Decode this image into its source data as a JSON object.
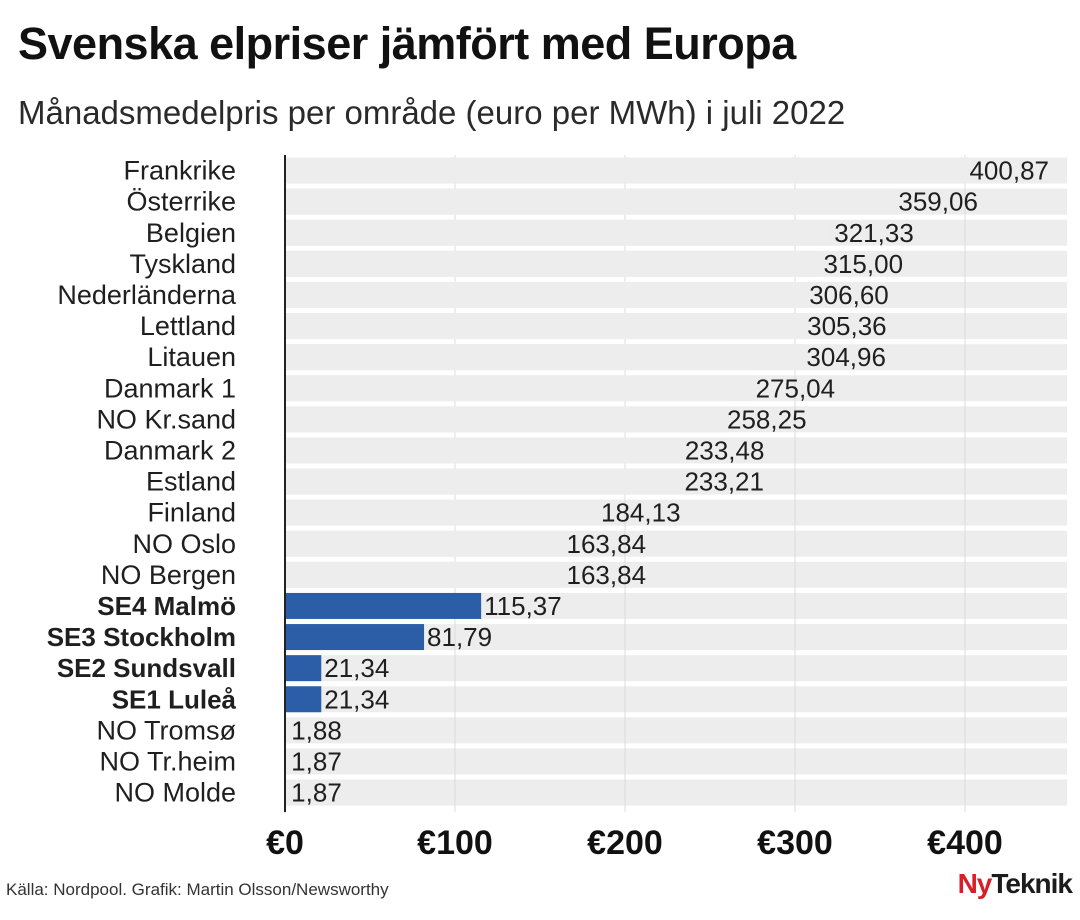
{
  "title": "Svenska elpriser jämfört med Europa",
  "subtitle": "Månadsmedelpris per område (euro per MWh) i juli 2022",
  "source": "Källa: Nordpool. Grafik: Martin Olsson/Newsworthy",
  "logo": {
    "part1": "Ny",
    "part2": "Teknik"
  },
  "colors": {
    "background_bar": "#ededed",
    "highlight_bar": "#2c5ea8",
    "grid": "#dcdcdc",
    "axis": "#222222",
    "logo_red": "#d81e27"
  },
  "chart_data": {
    "type": "bar",
    "orientation": "horizontal",
    "title": "Svenska elpriser jämfört med Europa",
    "subtitle": "Månadsmedelpris per område (euro per MWh) i juli 2022",
    "xlim": [
      0,
      460
    ],
    "grid": true,
    "x_ticks": [
      0,
      100,
      200,
      300,
      400
    ],
    "x_tick_labels": [
      "€0",
      "€100",
      "€200",
      "€300",
      "€400"
    ],
    "categories": [
      "Frankrike",
      "Österrike",
      "Belgien",
      "Tyskland",
      "Nederländerna",
      "Lettland",
      "Litauen",
      "Danmark 1",
      "NO Kr.sand",
      "Danmark 2",
      "Estland",
      "Finland",
      "NO Oslo",
      "NO Bergen",
      "SE4 Malmö",
      "SE3 Stockholm",
      "SE2 Sundsvall",
      "SE1 Luleå",
      "NO Tromsø",
      "NO Tr.heim",
      "NO Molde"
    ],
    "values": [
      400.87,
      359.06,
      321.33,
      315.0,
      306.6,
      305.36,
      304.96,
      275.04,
      258.25,
      233.48,
      233.21,
      184.13,
      163.84,
      163.84,
      115.37,
      81.79,
      21.34,
      21.34,
      1.88,
      1.87,
      1.87
    ],
    "value_labels": [
      "400,87",
      "359,06",
      "321,33",
      "315,00",
      "306,60",
      "305,36",
      "304,96",
      "275,04",
      "258,25",
      "233,48",
      "233,21",
      "184,13",
      "163,84",
      "163,84",
      "115,37",
      "81,79",
      "21,34",
      "21,34",
      "1,88",
      "1,87",
      "1,87"
    ],
    "highlighted": [
      false,
      false,
      false,
      false,
      false,
      false,
      false,
      false,
      false,
      false,
      false,
      false,
      false,
      false,
      true,
      true,
      true,
      true,
      false,
      false,
      false
    ]
  }
}
